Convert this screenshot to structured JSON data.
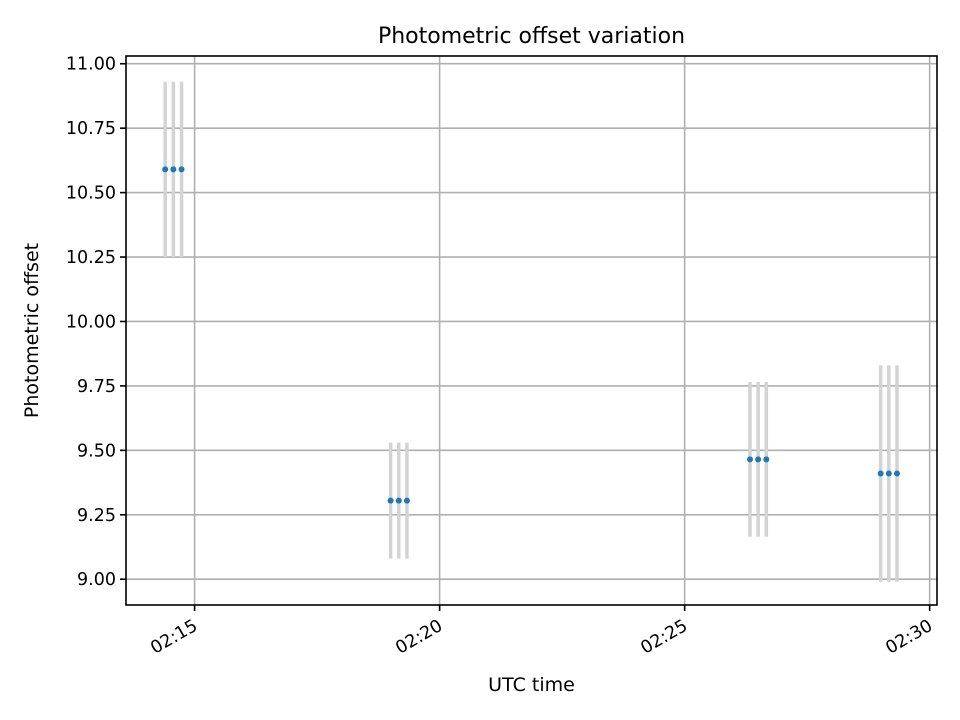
{
  "chart_data": {
    "type": "scatter",
    "title": "Photometric offset variation",
    "xlabel": "UTC time",
    "ylabel": "Photometric offset",
    "x_unit": "UTC clock time",
    "xlim": [
      "02:13:36",
      "02:30:09"
    ],
    "ylim": [
      8.9,
      11.03
    ],
    "x_ticks": [
      "02:15",
      "02:20",
      "02:25",
      "02:30"
    ],
    "y_ticks": [
      "9.00",
      "9.25",
      "9.50",
      "9.75",
      "10.00",
      "10.25",
      "10.50",
      "10.75",
      "11.00"
    ],
    "grid": true,
    "colors": {
      "point": "#1f77b4",
      "errorbar": "#d3d3d3"
    },
    "points": [
      {
        "x": "02:14:24",
        "y": 10.59,
        "yerr": 0.34
      },
      {
        "x": "02:14:34",
        "y": 10.59,
        "yerr": 0.34
      },
      {
        "x": "02:14:44",
        "y": 10.59,
        "yerr": 0.34
      },
      {
        "x": "02:19:00",
        "y": 9.305,
        "yerr": 0.225
      },
      {
        "x": "02:19:10",
        "y": 9.305,
        "yerr": 0.225
      },
      {
        "x": "02:19:20",
        "y": 9.305,
        "yerr": 0.225
      },
      {
        "x": "02:26:20",
        "y": 9.465,
        "yerr": 0.3
      },
      {
        "x": "02:26:30",
        "y": 9.465,
        "yerr": 0.3
      },
      {
        "x": "02:26:40",
        "y": 9.465,
        "yerr": 0.3
      },
      {
        "x": "02:29:00",
        "y": 9.41,
        "yerr": 0.42
      },
      {
        "x": "02:29:10",
        "y": 9.41,
        "yerr": 0.42
      },
      {
        "x": "02:29:20",
        "y": 9.41,
        "yerr": 0.42
      }
    ]
  }
}
